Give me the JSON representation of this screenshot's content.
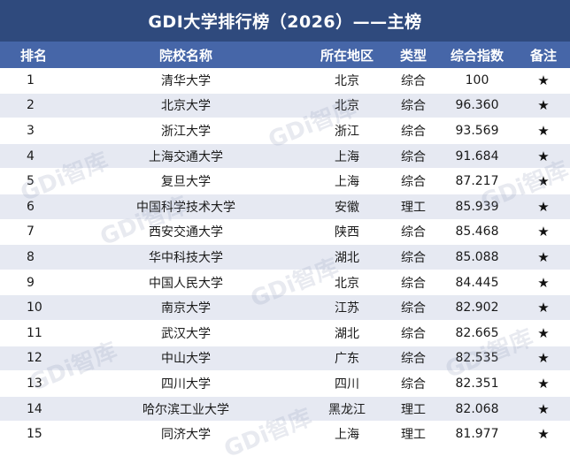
{
  "title": "GDI大学排行榜（2026）——主榜",
  "watermark": "GDi智库",
  "columns": {
    "rank": "排名",
    "name": "院校名称",
    "region": "所在地区",
    "type": "类型",
    "score": "综合指数",
    "note": "备注"
  },
  "star_glyph": "★",
  "rows": [
    {
      "rank": "1",
      "name": "清华大学",
      "region": "北京",
      "type": "综合",
      "score": "100"
    },
    {
      "rank": "2",
      "name": "北京大学",
      "region": "北京",
      "type": "综合",
      "score": "96.360"
    },
    {
      "rank": "3",
      "name": "浙江大学",
      "region": "浙江",
      "type": "综合",
      "score": "93.569"
    },
    {
      "rank": "4",
      "name": "上海交通大学",
      "region": "上海",
      "type": "综合",
      "score": "91.684"
    },
    {
      "rank": "5",
      "name": "复旦大学",
      "region": "上海",
      "type": "综合",
      "score": "87.217"
    },
    {
      "rank": "6",
      "name": "中国科学技术大学",
      "region": "安徽",
      "type": "理工",
      "score": "85.939"
    },
    {
      "rank": "7",
      "name": "西安交通大学",
      "region": "陕西",
      "type": "综合",
      "score": "85.468"
    },
    {
      "rank": "8",
      "name": "华中科技大学",
      "region": "湖北",
      "type": "综合",
      "score": "85.088"
    },
    {
      "rank": "9",
      "name": "中国人民大学",
      "region": "北京",
      "type": "综合",
      "score": "84.445"
    },
    {
      "rank": "10",
      "name": "南京大学",
      "region": "江苏",
      "type": "综合",
      "score": "82.902"
    },
    {
      "rank": "11",
      "name": "武汉大学",
      "region": "湖北",
      "type": "综合",
      "score": "82.665"
    },
    {
      "rank": "12",
      "name": "中山大学",
      "region": "广东",
      "type": "综合",
      "score": "82.535"
    },
    {
      "rank": "13",
      "name": "四川大学",
      "region": "四川",
      "type": "综合",
      "score": "82.351"
    },
    {
      "rank": "14",
      "name": "哈尔滨工业大学",
      "region": "黑龙江",
      "type": "理工",
      "score": "82.068"
    },
    {
      "rank": "15",
      "name": "同济大学",
      "region": "上海",
      "type": "理工",
      "score": "81.977"
    }
  ]
}
